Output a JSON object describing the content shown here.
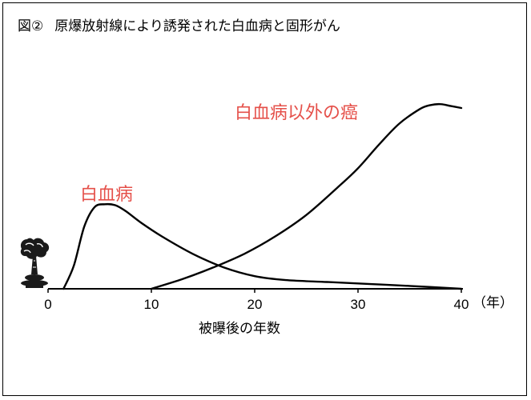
{
  "figure": {
    "number_label": "図②",
    "title": "原爆放射線により誘発された白血病と固形がん"
  },
  "colors": {
    "label_color": "#e5504a",
    "line_color": "#000000",
    "axis_color": "#000000"
  },
  "icon": {
    "name": "mushroom-cloud-icon"
  },
  "chart_data": {
    "type": "line",
    "title": "原爆放射線により誘発された白血病と固形がん",
    "xlabel": "被曝後の年数",
    "x_unit": "（年）",
    "ylabel": "",
    "xlim": [
      0,
      40
    ],
    "ylim": [
      0,
      100
    ],
    "xticks": [
      0,
      10,
      20,
      30,
      40
    ],
    "grid": false,
    "series": [
      {
        "name": "白血病",
        "x": [
          1.5,
          2.5,
          3.5,
          4.5,
          5.5,
          6.5,
          7.5,
          9,
          11,
          14,
          17,
          20,
          23,
          27,
          31,
          35,
          40
        ],
        "y": [
          0,
          12,
          32,
          42,
          43.5,
          43,
          40,
          34,
          27,
          18,
          11,
          6.5,
          4.5,
          3.5,
          2.5,
          1.5,
          0
        ]
      },
      {
        "name": "白血病以外の癌",
        "x": [
          10,
          13,
          16,
          19,
          22,
          25,
          28,
          30,
          32,
          34,
          36,
          37,
          38,
          39,
          40
        ],
        "y": [
          0,
          5,
          11,
          18,
          27,
          38,
          52,
          62,
          74,
          85,
          92.5,
          94.5,
          95,
          94,
          93
        ]
      }
    ]
  }
}
